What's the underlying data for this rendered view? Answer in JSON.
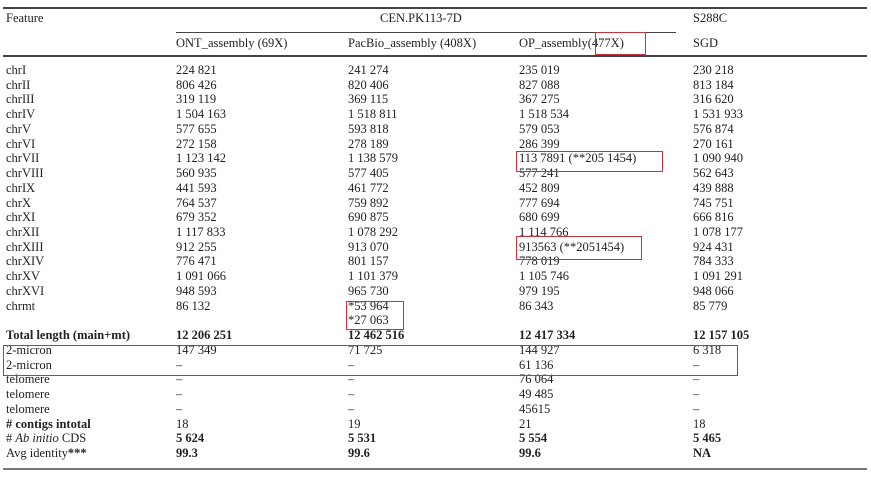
{
  "header": {
    "feature": "Feature",
    "group1": "CEN.PK113-7D",
    "group2": "S288C",
    "columns": [
      "ONT_assembly (69X)",
      "PacBio_assembly (408X)",
      "OP_assembly(477X)",
      "SGD"
    ]
  },
  "rows": [
    {
      "label": "chrI",
      "values": [
        "224 821",
        "241 274",
        "235 019",
        "230 218"
      ]
    },
    {
      "label": "chrII",
      "values": [
        "806 426",
        "820 406",
        "827 088",
        "813 184"
      ]
    },
    {
      "label": "chrIII",
      "values": [
        "319 119",
        "369 115",
        "367 275",
        "316 620"
      ]
    },
    {
      "label": "chrIV",
      "values": [
        "1 504 163",
        "1 518 811",
        "1 518 534",
        "1 531 933"
      ]
    },
    {
      "label": "chrV",
      "values": [
        "577 655",
        "593 818",
        "579 053",
        "576 874"
      ]
    },
    {
      "label": "chrVI",
      "values": [
        "272 158",
        "278 189",
        "286 399",
        "270 161"
      ]
    },
    {
      "label": "chrVII",
      "values": [
        "1 123 142",
        "1 138 579",
        "113 7891 (**205 1454)",
        "1 090 940"
      ]
    },
    {
      "label": "chrVIII",
      "values": [
        "560 935",
        "577 405",
        "577 241",
        "562 643"
      ]
    },
    {
      "label": "chrIX",
      "values": [
        "441 593",
        "461 772",
        "452 809",
        "439 888"
      ]
    },
    {
      "label": "chrX",
      "values": [
        "764 537",
        "759 892",
        "777 694",
        "745 751"
      ]
    },
    {
      "label": "chrXI",
      "values": [
        "679 352",
        "690 875",
        "680 699",
        "666 816"
      ]
    },
    {
      "label": "chrXII",
      "values": [
        "1 117 833",
        "1 078 292",
        "1 114 766",
        "1 078 177"
      ]
    },
    {
      "label": "chrXIII",
      "values": [
        "912 255",
        "913 070",
        "913563 (**2051454)",
        "924 431"
      ]
    },
    {
      "label": "chrXIV",
      "values": [
        "776 471",
        "801 157",
        "778 019",
        "784 333"
      ]
    },
    {
      "label": "chrXV",
      "values": [
        "1 091 066",
        "1 101 379",
        "1 105 746",
        "1 091 291"
      ]
    },
    {
      "label": "chrXVI",
      "values": [
        "948 593",
        "965 730",
        "979 195",
        "948 066"
      ]
    },
    {
      "label": "chrmt",
      "values": [
        "86 132",
        "*53 964",
        "86 343",
        "85 779"
      ]
    },
    {
      "label": "",
      "values": [
        "",
        "*27 063",
        "",
        ""
      ]
    },
    {
      "label": "Total length (main+mt)",
      "values": [
        "12 206 251",
        "12 462 516",
        "12 417 334",
        "12 157 105"
      ]
    },
    {
      "label": "2-micron",
      "values": [
        "147 349",
        "71 725",
        "144 927",
        "6 318"
      ]
    },
    {
      "label": "2-micron",
      "values": [
        "–",
        "–",
        "61 136",
        "–"
      ]
    },
    {
      "label": "telomere",
      "values": [
        "–",
        "–",
        "76 064",
        "–"
      ]
    },
    {
      "label": "telomere",
      "values": [
        "–",
        "–",
        "49 485",
        "–"
      ]
    },
    {
      "label": "telomere",
      "values": [
        "–",
        "–",
        "45615",
        "–"
      ]
    },
    {
      "label": "# contigs intotal",
      "values": [
        "18",
        "19",
        "21",
        "18"
      ]
    },
    {
      "label_prefix": "# ",
      "label_italic": "Ab initio",
      "label_suffix": " CDS",
      "values": [
        "5 624",
        "5 531",
        "5 554",
        "5 465"
      ]
    },
    {
      "label": "Avg identity",
      "label_mark": "***",
      "values": [
        "99.3",
        "99.6",
        "99.6",
        "NA"
      ]
    }
  ],
  "highlight_color": "#c8323c"
}
